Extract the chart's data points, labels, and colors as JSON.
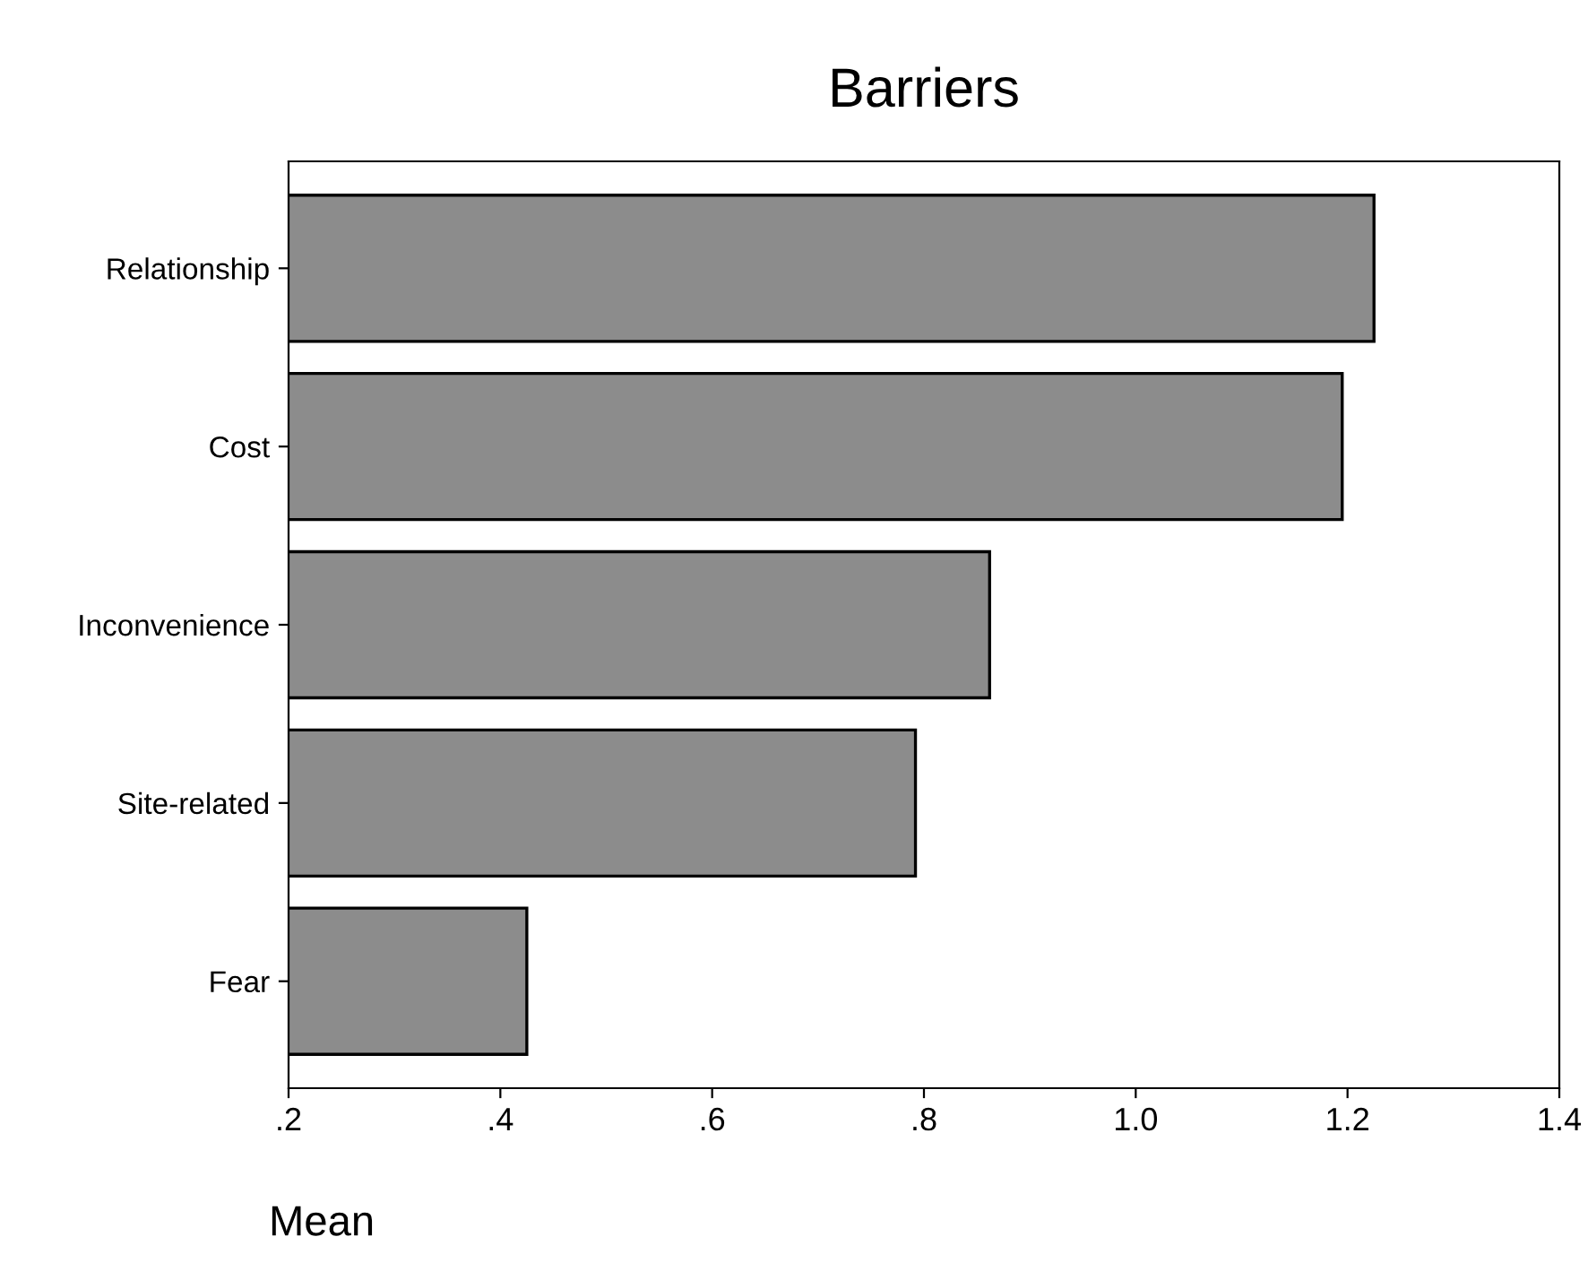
{
  "chart_data": {
    "type": "bar",
    "orientation": "horizontal",
    "title": "Barriers",
    "xlabel": "Mean",
    "categories": [
      "Relationship",
      "Cost",
      "Inconvenience",
      "Site-related",
      "Fear"
    ],
    "values": [
      1.225,
      1.195,
      0.862,
      0.792,
      0.425
    ],
    "color": "#8c8c8c",
    "xlim": [
      0.2,
      1.4
    ],
    "xticks": [
      {
        "value": 0.2,
        "label": ".2"
      },
      {
        "value": 0.4,
        "label": ".4"
      },
      {
        "value": 0.6,
        "label": ".6"
      },
      {
        "value": 0.8,
        "label": ".8"
      },
      {
        "value": 1.0,
        "label": "1.0"
      },
      {
        "value": 1.2,
        "label": "1.2"
      },
      {
        "value": 1.4,
        "label": "1.4"
      }
    ],
    "grid": false,
    "legend": false
  }
}
